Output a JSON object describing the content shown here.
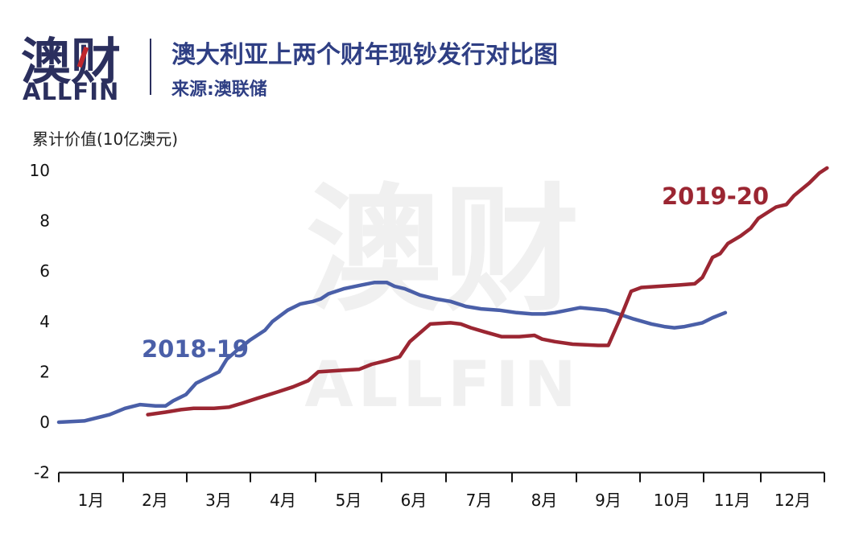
{
  "logo": {
    "cn": "澳财",
    "en": "ALLFIN"
  },
  "title": "澳大利亚上两个财年现钞发行对比图",
  "source": "来源:澳联储",
  "watermark": {
    "cn": "澳财",
    "en": "ALLFIN"
  },
  "colors": {
    "series_2018_19": "#4a5fa8",
    "series_2019_20": "#9b2632",
    "brand": "#2b2f5e",
    "title": "#2f3f84",
    "accent_red": "#c0272d"
  },
  "chart_data": {
    "type": "line",
    "ylabel": "累计价值(10亿澳元)",
    "ylim": [
      -2,
      10
    ],
    "yticks": [
      "10",
      "8",
      "6",
      "4",
      "2",
      "0",
      "-2"
    ],
    "ytick_values": [
      10,
      8,
      6,
      4,
      2,
      0,
      -2
    ],
    "categories": [
      "1月",
      "2月",
      "3月",
      "4月",
      "5月",
      "6月",
      "7月",
      "8月",
      "9月",
      "10月",
      "11月",
      "12月"
    ],
    "grid": false,
    "series": [
      {
        "name": "2018-19",
        "points": [
          [
            0,
            0
          ],
          [
            0.5,
            0.05
          ],
          [
            1.0,
            0.3
          ],
          [
            1.3,
            0.55
          ],
          [
            1.6,
            0.7
          ],
          [
            1.9,
            0.65
          ],
          [
            2.1,
            0.65
          ],
          [
            2.25,
            0.85
          ],
          [
            2.5,
            1.1
          ],
          [
            2.7,
            1.55
          ],
          [
            3.0,
            1.85
          ],
          [
            3.15,
            2.0
          ],
          [
            3.3,
            2.5
          ],
          [
            3.5,
            2.85
          ],
          [
            3.75,
            3.25
          ],
          [
            4.05,
            3.65
          ],
          [
            4.2,
            4.0
          ],
          [
            4.5,
            4.45
          ],
          [
            4.75,
            4.7
          ],
          [
            5.0,
            4.8
          ],
          [
            5.15,
            4.9
          ],
          [
            5.3,
            5.1
          ],
          [
            5.6,
            5.3
          ],
          [
            5.95,
            5.45
          ],
          [
            6.2,
            5.55
          ],
          [
            6.45,
            5.55
          ],
          [
            6.6,
            5.4
          ],
          [
            6.8,
            5.3
          ],
          [
            7.1,
            5.05
          ],
          [
            7.4,
            4.9
          ],
          [
            7.7,
            4.8
          ],
          [
            8.0,
            4.6
          ],
          [
            8.3,
            4.5
          ],
          [
            8.65,
            4.45
          ],
          [
            9.0,
            4.35
          ],
          [
            9.3,
            4.3
          ],
          [
            9.55,
            4.3
          ],
          [
            9.75,
            4.35
          ],
          [
            10.0,
            4.45
          ],
          [
            10.25,
            4.55
          ],
          [
            10.5,
            4.5
          ],
          [
            10.75,
            4.45
          ],
          [
            11.0,
            4.3
          ],
          [
            11.3,
            4.1
          ],
          [
            11.65,
            3.9
          ],
          [
            11.9,
            3.8
          ],
          [
            12.1,
            3.75
          ],
          [
            12.3,
            3.8
          ],
          [
            12.65,
            3.95
          ],
          [
            12.85,
            4.15
          ],
          [
            13.1,
            4.35
          ]
        ]
      },
      {
        "name": "2019-20",
        "points": [
          [
            1.75,
            0.3
          ],
          [
            2.1,
            0.4
          ],
          [
            2.4,
            0.5
          ],
          [
            2.65,
            0.55
          ],
          [
            3.05,
            0.55
          ],
          [
            3.35,
            0.6
          ],
          [
            3.6,
            0.75
          ],
          [
            3.9,
            0.95
          ],
          [
            4.3,
            1.2
          ],
          [
            4.6,
            1.4
          ],
          [
            4.9,
            1.65
          ],
          [
            5.1,
            2.0
          ],
          [
            5.5,
            2.05
          ],
          [
            5.9,
            2.1
          ],
          [
            6.15,
            2.3
          ],
          [
            6.45,
            2.45
          ],
          [
            6.7,
            2.6
          ],
          [
            6.9,
            3.2
          ],
          [
            7.3,
            3.9
          ],
          [
            7.7,
            3.95
          ],
          [
            7.9,
            3.9
          ],
          [
            8.1,
            3.75
          ],
          [
            8.35,
            3.6
          ],
          [
            8.7,
            3.4
          ],
          [
            9.05,
            3.4
          ],
          [
            9.35,
            3.45
          ],
          [
            9.5,
            3.3
          ],
          [
            9.75,
            3.2
          ],
          [
            10.1,
            3.1
          ],
          [
            10.6,
            3.05
          ],
          [
            10.8,
            3.05
          ],
          [
            11.05,
            4.2
          ],
          [
            11.25,
            5.2
          ],
          [
            11.45,
            5.35
          ],
          [
            11.8,
            5.4
          ],
          [
            12.2,
            5.45
          ],
          [
            12.5,
            5.5
          ],
          [
            12.65,
            5.75
          ],
          [
            12.85,
            6.55
          ],
          [
            13.0,
            6.7
          ],
          [
            13.15,
            7.1
          ],
          [
            13.4,
            7.4
          ],
          [
            13.6,
            7.7
          ],
          [
            13.75,
            8.1
          ],
          [
            14.1,
            8.55
          ],
          [
            14.3,
            8.65
          ],
          [
            14.45,
            9.0
          ],
          [
            14.75,
            9.5
          ],
          [
            14.95,
            9.9
          ],
          [
            15.1,
            10.1
          ]
        ]
      }
    ]
  }
}
